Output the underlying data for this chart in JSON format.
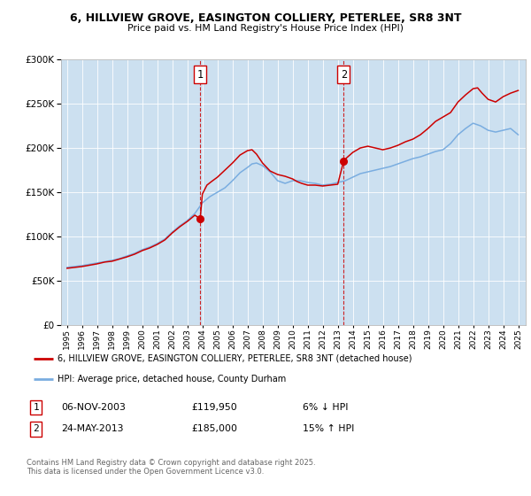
{
  "title_line1": "6, HILLVIEW GROVE, EASINGTON COLLIERY, PETERLEE, SR8 3NT",
  "title_line2": "Price paid vs. HM Land Registry's House Price Index (HPI)",
  "legend_line1": "6, HILLVIEW GROVE, EASINGTON COLLIERY, PETERLEE, SR8 3NT (detached house)",
  "legend_line2": "HPI: Average price, detached house, County Durham",
  "footer": "Contains HM Land Registry data © Crown copyright and database right 2025.\nThis data is licensed under the Open Government Licence v3.0.",
  "transaction1_date": "06-NOV-2003",
  "transaction1_price": "£119,950",
  "transaction1_change": "6% ↓ HPI",
  "transaction2_date": "24-MAY-2013",
  "transaction2_price": "£185,000",
  "transaction2_change": "15% ↑ HPI",
  "vline1_x": 2003.85,
  "vline2_x": 2013.39,
  "marker1_x": 2003.85,
  "marker1_y": 119950,
  "marker2_x": 2013.39,
  "marker2_y": 185000,
  "ylim": [
    0,
    300000
  ],
  "xlim_start": 1994.6,
  "xlim_end": 2025.5,
  "background_color": "#cce0f0",
  "red_color": "#cc0000",
  "blue_color": "#7aade0",
  "years_hpi": [
    1995.0,
    1995.5,
    1996.0,
    1996.5,
    1997.0,
    1997.5,
    1998.0,
    1998.5,
    1999.0,
    1999.5,
    2000.0,
    2000.5,
    2001.0,
    2001.5,
    2002.0,
    2002.5,
    2003.0,
    2003.5,
    2004.0,
    2004.5,
    2005.0,
    2005.5,
    2006.0,
    2006.5,
    2007.0,
    2007.3,
    2007.6,
    2008.0,
    2008.5,
    2009.0,
    2009.5,
    2010.0,
    2010.5,
    2011.0,
    2011.5,
    2012.0,
    2012.5,
    2013.0,
    2013.5,
    2014.0,
    2014.5,
    2015.0,
    2015.5,
    2016.0,
    2016.5,
    2017.0,
    2017.5,
    2018.0,
    2018.5,
    2019.0,
    2019.5,
    2020.0,
    2020.5,
    2021.0,
    2021.5,
    2022.0,
    2022.5,
    2023.0,
    2023.5,
    2024.0,
    2024.5,
    2025.0
  ],
  "hpi_values": [
    65000,
    66000,
    67000,
    68500,
    70000,
    71500,
    73000,
    75000,
    78000,
    81000,
    85000,
    88000,
    92000,
    97000,
    105000,
    112000,
    118000,
    126000,
    138000,
    145000,
    150000,
    155000,
    163000,
    172000,
    178000,
    182000,
    183000,
    180000,
    173000,
    163000,
    160000,
    163000,
    163000,
    161000,
    160000,
    158000,
    159000,
    161000,
    163000,
    167000,
    171000,
    173000,
    175000,
    177000,
    179000,
    182000,
    185000,
    188000,
    190000,
    193000,
    196000,
    198000,
    205000,
    215000,
    222000,
    228000,
    225000,
    220000,
    218000,
    220000,
    222000,
    215000
  ],
  "years_red": [
    1995.0,
    1995.5,
    1996.0,
    1996.5,
    1997.0,
    1997.5,
    1998.0,
    1998.5,
    1999.0,
    1999.5,
    2000.0,
    2000.5,
    2001.0,
    2001.5,
    2002.0,
    2002.5,
    2003.0,
    2003.5,
    2003.85,
    2004.0,
    2004.3,
    2004.6,
    2005.0,
    2005.5,
    2006.0,
    2006.5,
    2007.0,
    2007.3,
    2007.6,
    2008.0,
    2008.5,
    2009.0,
    2009.5,
    2010.0,
    2010.3,
    2010.6,
    2011.0,
    2011.5,
    2012.0,
    2012.5,
    2013.0,
    2013.39,
    2013.6,
    2014.0,
    2014.5,
    2015.0,
    2015.5,
    2016.0,
    2016.5,
    2017.0,
    2017.5,
    2018.0,
    2018.5,
    2019.0,
    2019.5,
    2020.0,
    2020.5,
    2021.0,
    2021.5,
    2022.0,
    2022.3,
    2022.6,
    2023.0,
    2023.5,
    2024.0,
    2024.5,
    2025.0
  ],
  "red_values": [
    64000,
    65000,
    66000,
    67500,
    69000,
    71000,
    72000,
    74500,
    77000,
    80000,
    84000,
    87000,
    91000,
    96000,
    104000,
    111000,
    117000,
    124000,
    119950,
    148000,
    158000,
    162000,
    167000,
    175000,
    183000,
    192000,
    197000,
    198000,
    193000,
    183000,
    174000,
    170000,
    168000,
    165000,
    162000,
    160000,
    158000,
    158000,
    157000,
    158000,
    159000,
    185000,
    189000,
    195000,
    200000,
    202000,
    200000,
    198000,
    200000,
    203000,
    207000,
    210000,
    215000,
    222000,
    230000,
    235000,
    240000,
    252000,
    260000,
    267000,
    268000,
    262000,
    255000,
    252000,
    258000,
    262000,
    265000
  ]
}
